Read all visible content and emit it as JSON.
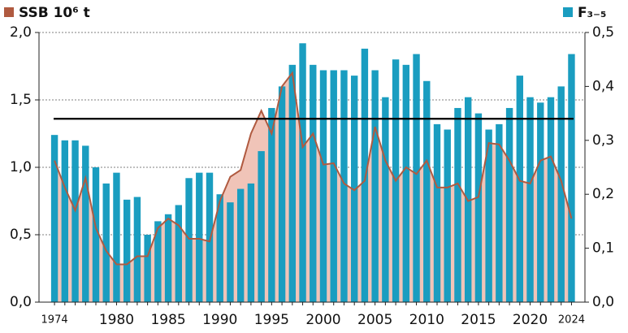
{
  "chart_data": {
    "type": "bar",
    "x": [
      1974,
      1975,
      1976,
      1977,
      1978,
      1979,
      1980,
      1981,
      1982,
      1983,
      1984,
      1985,
      1986,
      1987,
      1988,
      1989,
      1990,
      1991,
      1992,
      1993,
      1994,
      1995,
      1996,
      1997,
      1998,
      1999,
      2000,
      2001,
      2002,
      2003,
      2004,
      2005,
      2006,
      2007,
      2008,
      2009,
      2010,
      2011,
      2012,
      2013,
      2014,
      2015,
      2016,
      2017,
      2018,
      2019,
      2020,
      2021,
      2022,
      2023,
      2024
    ],
    "series": [
      {
        "name": "SSB  10⁶ t",
        "type": "area",
        "axis": "y",
        "color": "#b05a40",
        "fill": "#f0c4b8",
        "values": [
          1.05,
          0.85,
          0.68,
          0.92,
          0.55,
          0.38,
          0.28,
          0.28,
          0.34,
          0.34,
          0.55,
          0.62,
          0.57,
          0.47,
          0.47,
          0.45,
          0.75,
          0.93,
          0.98,
          1.25,
          1.42,
          1.25,
          1.6,
          1.7,
          1.15,
          1.25,
          1.02,
          1.03,
          0.88,
          0.83,
          0.9,
          1.3,
          1.05,
          0.9,
          1.0,
          0.95,
          1.05,
          0.85,
          0.85,
          0.88,
          0.75,
          0.78,
          1.18,
          1.17,
          1.05,
          0.9,
          0.88,
          1.05,
          1.08,
          0.9,
          0.62
        ]
      },
      {
        "name": "F₃₋₅",
        "type": "bar",
        "axis": "y2",
        "color": "#1a9dc0",
        "values": [
          0.31,
          0.3,
          0.3,
          0.29,
          0.25,
          0.22,
          0.24,
          0.19,
          0.195,
          0.125,
          0.15,
          0.163,
          0.18,
          0.23,
          0.24,
          0.24,
          0.2,
          0.185,
          0.21,
          0.22,
          0.28,
          0.36,
          0.4,
          0.44,
          0.48,
          0.44,
          0.43,
          0.43,
          0.43,
          0.42,
          0.47,
          0.43,
          0.38,
          0.45,
          0.44,
          0.46,
          0.41,
          0.33,
          0.32,
          0.36,
          0.38,
          0.35,
          0.32,
          0.33,
          0.36,
          0.42,
          0.38,
          0.37,
          0.38,
          0.4,
          0.46
        ]
      }
    ],
    "reference_line": 1.36,
    "xlim": [
      1972.5,
      2025.3
    ],
    "xticks": [
      1974,
      1980,
      1985,
      1990,
      1995,
      2000,
      2005,
      2010,
      2015,
      2020,
      2024
    ],
    "ylim": [
      0,
      2
    ],
    "yticks": [
      {
        "value": 0,
        "label": "0,0"
      },
      {
        "value": 0.5,
        "label": "0,5"
      },
      {
        "value": 1,
        "label": "1,0"
      },
      {
        "value": 1.5,
        "label": "1,5"
      },
      {
        "value": 2,
        "label": "2,0"
      }
    ],
    "y2lim": [
      0,
      0.5
    ],
    "y2ticks": [
      {
        "value": 0,
        "label": "0,0"
      },
      {
        "value": 0.1,
        "label": "0,1"
      },
      {
        "value": 0.2,
        "label": "0,2"
      },
      {
        "value": 0.3,
        "label": "0,3"
      },
      {
        "value": 0.4,
        "label": "0,4"
      },
      {
        "value": 0.5,
        "label": "0,5"
      }
    ],
    "grid": true
  }
}
